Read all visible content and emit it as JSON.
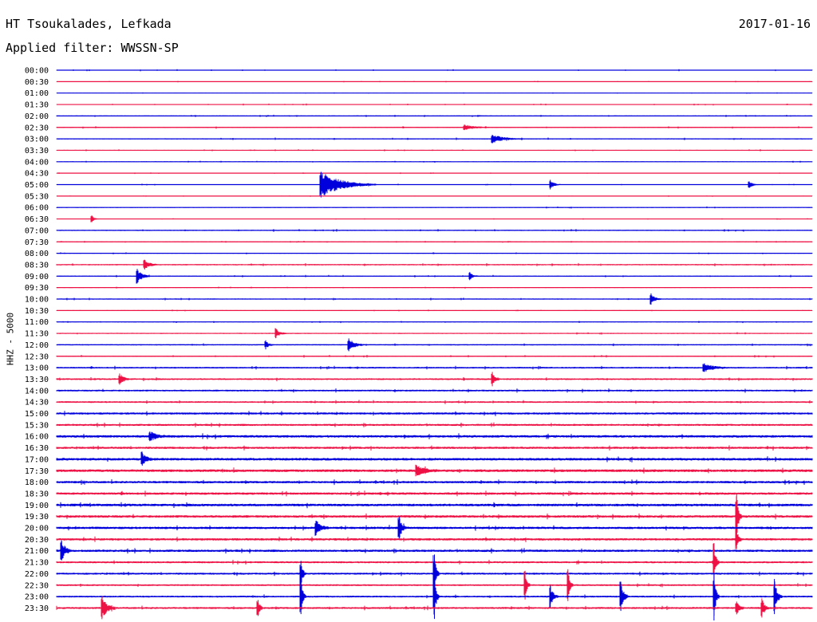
{
  "header": {
    "station": "HT Tsoukalades, Lefkada",
    "filter": "Applied filter: WWSSN-SP",
    "date": "2017-01-16"
  },
  "axis_label": "HHZ - 5000",
  "colors": {
    "even_rows": "#0000dd",
    "odd_rows": "#ee1144",
    "text": "#000000",
    "background": "#ffffff"
  },
  "chart_data": {
    "type": "line",
    "row_labels": [
      "00:00",
      "00:30",
      "01:00",
      "01:30",
      "02:00",
      "02:30",
      "03:00",
      "03:30",
      "04:00",
      "04:30",
      "05:00",
      "05:30",
      "06:00",
      "06:30",
      "07:00",
      "07:30",
      "08:00",
      "08:30",
      "09:00",
      "09:30",
      "10:00",
      "10:30",
      "11:00",
      "11:30",
      "12:00",
      "12:30",
      "13:00",
      "13:30",
      "14:00",
      "14:30",
      "15:00",
      "15:30",
      "16:00",
      "16:30",
      "17:00",
      "17:30",
      "18:00",
      "18:30",
      "19:00",
      "19:30",
      "20:00",
      "20:30",
      "21:00",
      "21:30",
      "22:00",
      "22:30",
      "23:00",
      "23:30"
    ],
    "row_minutes": 30,
    "noise_level": [
      1.0,
      0.7,
      0.6,
      0.9,
      1.1,
      1.3,
      1.2,
      1.0,
      0.9,
      0.7,
      0.8,
      0.6,
      1.0,
      0.7,
      1.3,
      0.9,
      1.0,
      1.5,
      1.2,
      0.9,
      1.2,
      0.8,
      1.0,
      1.2,
      1.4,
      1.3,
      1.8,
      2.0,
      2.0,
      1.9,
      2.4,
      2.3,
      2.8,
      2.5,
      2.9,
      3.0,
      2.6,
      2.7,
      2.9,
      2.8,
      2.7,
      2.6,
      2.6,
      2.2,
      2.2,
      2.0,
      2.0,
      2.2
    ],
    "events": [
      {
        "row": "05:00",
        "minute": 10.5,
        "amplitude": 16,
        "duration_min": 2.2
      },
      {
        "row": "05:00",
        "minute": 19.6,
        "amplitude": 6,
        "duration_min": 0.4
      },
      {
        "row": "05:00",
        "minute": 27.5,
        "amplitude": 4,
        "duration_min": 0.4
      },
      {
        "row": "03:00",
        "minute": 17.3,
        "amplitude": 5,
        "duration_min": 1.2
      },
      {
        "row": "02:30",
        "minute": 16.2,
        "amplitude": 3,
        "duration_min": 1.0
      },
      {
        "row": "06:30",
        "minute": 1.4,
        "amplitude": 4,
        "duration_min": 0.3
      },
      {
        "row": "08:30",
        "minute": 3.5,
        "amplitude": 6,
        "duration_min": 0.5
      },
      {
        "row": "09:00",
        "minute": 3.2,
        "amplitude": 9,
        "duration_min": 0.5
      },
      {
        "row": "09:00",
        "minute": 16.4,
        "amplitude": 5,
        "duration_min": 0.3
      },
      {
        "row": "10:00",
        "minute": 23.6,
        "amplitude": 7,
        "duration_min": 0.4
      },
      {
        "row": "11:30",
        "minute": 8.7,
        "amplitude": 6,
        "duration_min": 0.4
      },
      {
        "row": "12:00",
        "minute": 8.3,
        "amplitude": 5,
        "duration_min": 0.3
      },
      {
        "row": "12:00",
        "minute": 11.6,
        "amplitude": 8,
        "duration_min": 0.6
      },
      {
        "row": "13:00",
        "minute": 25.7,
        "amplitude": 5,
        "duration_min": 1.0
      },
      {
        "row": "13:30",
        "minute": 2.5,
        "amplitude": 7,
        "duration_min": 0.4
      },
      {
        "row": "13:30",
        "minute": 17.3,
        "amplitude": 9,
        "duration_min": 0.3
      },
      {
        "row": "16:00",
        "minute": 3.7,
        "amplitude": 6,
        "duration_min": 0.6
      },
      {
        "row": "17:00",
        "minute": 3.4,
        "amplitude": 8,
        "duration_min": 0.4
      },
      {
        "row": "17:30",
        "minute": 14.3,
        "amplitude": 6,
        "duration_min": 0.8
      },
      {
        "row": "19:30",
        "minute": 27.0,
        "amplitude": 28,
        "duration_min": 0.2
      },
      {
        "row": "20:00",
        "minute": 10.3,
        "amplitude": 9,
        "duration_min": 0.5
      },
      {
        "row": "20:00",
        "minute": 13.6,
        "amplitude": 14,
        "duration_min": 0.3
      },
      {
        "row": "20:30",
        "minute": 27.0,
        "amplitude": 12,
        "duration_min": 0.2
      },
      {
        "row": "21:00",
        "minute": 0.2,
        "amplitude": 12,
        "duration_min": 0.4
      },
      {
        "row": "21:30",
        "minute": 26.1,
        "amplitude": 24,
        "duration_min": 0.2
      },
      {
        "row": "22:00",
        "minute": 9.7,
        "amplitude": 16,
        "duration_min": 0.2
      },
      {
        "row": "22:00",
        "minute": 15.0,
        "amplitude": 24,
        "duration_min": 0.2
      },
      {
        "row": "22:30",
        "minute": 18.6,
        "amplitude": 18,
        "duration_min": 0.2
      },
      {
        "row": "22:30",
        "minute": 20.3,
        "amplitude": 20,
        "duration_min": 0.2
      },
      {
        "row": "23:00",
        "minute": 9.7,
        "amplitude": 22,
        "duration_min": 0.2
      },
      {
        "row": "23:00",
        "minute": 15.0,
        "amplitude": 28,
        "duration_min": 0.2
      },
      {
        "row": "23:00",
        "minute": 19.6,
        "amplitude": 14,
        "duration_min": 0.3
      },
      {
        "row": "23:00",
        "minute": 22.4,
        "amplitude": 18,
        "duration_min": 0.3
      },
      {
        "row": "23:00",
        "minute": 26.1,
        "amplitude": 30,
        "duration_min": 0.2
      },
      {
        "row": "23:00",
        "minute": 28.5,
        "amplitude": 22,
        "duration_min": 0.3
      },
      {
        "row": "23:30",
        "minute": 1.8,
        "amplitude": 14,
        "duration_min": 0.5
      },
      {
        "row": "23:30",
        "minute": 8.0,
        "amplitude": 10,
        "duration_min": 0.2
      },
      {
        "row": "23:30",
        "minute": 27.0,
        "amplitude": 8,
        "duration_min": 0.3
      },
      {
        "row": "23:30",
        "minute": 28.0,
        "amplitude": 12,
        "duration_min": 0.3
      }
    ]
  }
}
